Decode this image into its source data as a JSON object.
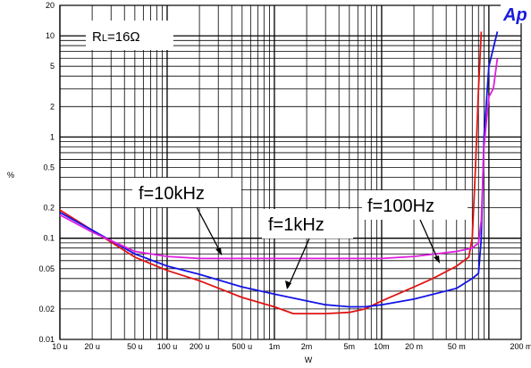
{
  "chart_data": {
    "type": "line",
    "xscale": "log",
    "yscale": "log",
    "xlim": [
      1e-05,
      0.2
    ],
    "ylim": [
      0.01,
      20
    ],
    "xlabel": "W",
    "ylabel": "%",
    "grid": true,
    "x_ticks": [
      {
        "value": 1e-05,
        "label": "10 u"
      },
      {
        "value": 2e-05,
        "label": "20 u"
      },
      {
        "value": 5e-05,
        "label": "50 u"
      },
      {
        "value": 0.0001,
        "label": "100 u"
      },
      {
        "value": 0.0002,
        "label": "200 u"
      },
      {
        "value": 0.0005,
        "label": "500 u"
      },
      {
        "value": 0.001,
        "label": "1m"
      },
      {
        "value": 0.002,
        "label": "2m"
      },
      {
        "value": 0.005,
        "label": "5m"
      },
      {
        "value": 0.01,
        "label": "10m"
      },
      {
        "value": 0.02,
        "label": "20 m"
      },
      {
        "value": 0.05,
        "label": "50 m"
      },
      {
        "value": 0.2,
        "label": "200 m"
      }
    ],
    "y_ticks": [
      {
        "value": 0.01,
        "label": "0.01"
      },
      {
        "value": 0.02,
        "label": "0.02"
      },
      {
        "value": 0.05,
        "label": "0.05"
      },
      {
        "value": 0.1,
        "label": "0.1"
      },
      {
        "value": 0.2,
        "label": "0.2"
      },
      {
        "value": 0.5,
        "label": "0.5"
      },
      {
        "value": 1,
        "label": "1"
      },
      {
        "value": 2,
        "label": "2"
      },
      {
        "value": 5,
        "label": "5"
      },
      {
        "value": 10,
        "label": "10"
      },
      {
        "value": 20,
        "label": "20"
      }
    ],
    "series": [
      {
        "name": "f=100Hz",
        "color": "#e01414",
        "points": [
          [
            1e-05,
            0.19
          ],
          [
            2e-05,
            0.12
          ],
          [
            5e-05,
            0.065
          ],
          [
            0.0001,
            0.048
          ],
          [
            0.0002,
            0.038
          ],
          [
            0.0005,
            0.026
          ],
          [
            0.001,
            0.021
          ],
          [
            0.0015,
            0.018
          ],
          [
            0.002,
            0.018
          ],
          [
            0.003,
            0.018
          ],
          [
            0.005,
            0.0185
          ],
          [
            0.007,
            0.02
          ],
          [
            0.01,
            0.024
          ],
          [
            0.02,
            0.033
          ],
          [
            0.03,
            0.04
          ],
          [
            0.05,
            0.053
          ],
          [
            0.065,
            0.065
          ],
          [
            0.07,
            0.1
          ],
          [
            0.075,
            0.5
          ],
          [
            0.08,
            3
          ],
          [
            0.085,
            11
          ]
        ]
      },
      {
        "name": "f=1kHz",
        "color": "#1414e6",
        "points": [
          [
            1e-05,
            0.18
          ],
          [
            2e-05,
            0.12
          ],
          [
            5e-05,
            0.07
          ],
          [
            0.0001,
            0.053
          ],
          [
            0.0002,
            0.044
          ],
          [
            0.0005,
            0.033
          ],
          [
            0.001,
            0.028
          ],
          [
            0.002,
            0.024
          ],
          [
            0.003,
            0.022
          ],
          [
            0.005,
            0.021
          ],
          [
            0.007,
            0.021
          ],
          [
            0.01,
            0.022
          ],
          [
            0.02,
            0.025
          ],
          [
            0.05,
            0.032
          ],
          [
            0.07,
            0.04
          ],
          [
            0.08,
            0.045
          ],
          [
            0.085,
            0.1
          ],
          [
            0.09,
            1
          ],
          [
            0.1,
            5
          ],
          [
            0.12,
            11
          ]
        ]
      },
      {
        "name": "f=10kHz",
        "color": "#e01ee0",
        "points": [
          [
            1e-05,
            0.17
          ],
          [
            2e-05,
            0.115
          ],
          [
            5e-05,
            0.074
          ],
          [
            0.0001,
            0.066
          ],
          [
            0.0002,
            0.063
          ],
          [
            0.0005,
            0.063
          ],
          [
            0.001,
            0.063
          ],
          [
            0.002,
            0.063
          ],
          [
            0.005,
            0.063
          ],
          [
            0.01,
            0.063
          ],
          [
            0.02,
            0.066
          ],
          [
            0.05,
            0.074
          ],
          [
            0.07,
            0.08
          ],
          [
            0.08,
            0.09
          ],
          [
            0.085,
            0.15
          ],
          [
            0.09,
            0.8
          ],
          [
            0.1,
            2.5
          ],
          [
            0.11,
            3
          ],
          [
            0.12,
            6
          ]
        ]
      }
    ],
    "annotations": [
      {
        "text": "f=10kHz",
        "series": "f=10kHz"
      },
      {
        "text": "f=1kHz",
        "series": "f=1kHz"
      },
      {
        "text": "f=100Hz",
        "series": "f=100Hz"
      }
    ],
    "inset_label": "RL=16Ω"
  },
  "inset": {
    "r": "R",
    "sub": "L",
    "rest": "=16Ω"
  },
  "logo_text": "Ap"
}
